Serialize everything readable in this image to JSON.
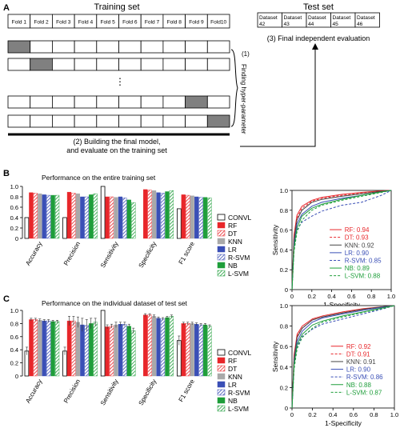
{
  "panel_a": {
    "letter": "A",
    "training_title": "Training set",
    "folds": [
      "Fold 1",
      "Fold 2",
      "Fold 3",
      "Fold 4",
      "Fold 5",
      "Fold 6",
      "Fold 7",
      "Fold 8",
      "Fold 9",
      "Fold10"
    ],
    "cv_highlight_folds": [
      1,
      2,
      9,
      10
    ],
    "dots": "⋮",
    "step1_number": "(1)",
    "step1_text": "Finding hyper-parameter",
    "step2_line1": "(2) Building the final model,",
    "step2_line2": "and evaluate on the training set",
    "test_title": "Test set",
    "test_datasets": [
      [
        "Dataset",
        "42"
      ],
      [
        "Dataset",
        "43"
      ],
      [
        "Dataset",
        "44"
      ],
      [
        "Dataset",
        "45"
      ],
      [
        "Dataset",
        "46"
      ]
    ],
    "step3_text": "(3) Final independent evaluation"
  },
  "panel_b": {
    "letter": "B",
    "title": "Performance on the entire training set"
  },
  "panel_c": {
    "letter": "C",
    "title": "Performance on the individual dataset of test set"
  },
  "models": [
    "CONVL",
    "RF",
    "DT",
    "KNN",
    "LR",
    "R-SVM",
    "NB",
    "L-SVM"
  ],
  "colors": {
    "CONVL": "#ffffff",
    "RF": "#e8262a",
    "DT": "#e8262a",
    "KNN": "#a9a9a9",
    "LR": "#3a4fb6",
    "R-SVM": "#3a4fb6",
    "NB": "#1e9e3a",
    "L-SVM": "#1e9e3a",
    "grey_fold": "#808080"
  },
  "roc_lines": {
    "RF": {
      "color": "#e8262a",
      "dash": "solid"
    },
    "DT": {
      "color": "#e8262a",
      "dash": "dashed"
    },
    "KNN": {
      "color": "#444444",
      "dash": "solid"
    },
    "LR": {
      "color": "#3a4fb6",
      "dash": "solid"
    },
    "R-SVM": {
      "color": "#3a4fb6",
      "dash": "dashed"
    },
    "NB": {
      "color": "#1e9e3a",
      "dash": "solid"
    },
    "L-SVM": {
      "color": "#1e9e3a",
      "dash": "dashed"
    }
  },
  "chart_data": [
    {
      "type": "bar",
      "title": "Performance on the entire training set",
      "categories": [
        "Accuracy",
        "Precision",
        "Sensitivity",
        "Specificity",
        "F1 score"
      ],
      "ylim": [
        0,
        1.0
      ],
      "yticks": [
        "0",
        "0.2",
        "0.4",
        "0.6",
        "0.8",
        "1.0"
      ],
      "series": [
        {
          "name": "CONVL",
          "values": [
            0.4,
            0.4,
            1.0,
            0.0,
            0.57
          ]
        },
        {
          "name": "RF",
          "values": [
            0.88,
            0.89,
            0.8,
            0.94,
            0.84
          ]
        },
        {
          "name": "DT",
          "values": [
            0.87,
            0.87,
            0.8,
            0.93,
            0.83
          ]
        },
        {
          "name": "KNN",
          "values": [
            0.86,
            0.86,
            0.79,
            0.92,
            0.82
          ]
        },
        {
          "name": "LR",
          "values": [
            0.84,
            0.8,
            0.8,
            0.88,
            0.8
          ]
        },
        {
          "name": "R-SVM",
          "values": [
            0.83,
            0.8,
            0.78,
            0.87,
            0.79
          ]
        },
        {
          "name": "NB",
          "values": [
            0.83,
            0.84,
            0.74,
            0.9,
            0.79
          ]
        },
        {
          "name": "L-SVM",
          "values": [
            0.83,
            0.86,
            0.69,
            0.92,
            0.78
          ]
        }
      ]
    },
    {
      "type": "line",
      "xlabel": "1-Specificity",
      "ylabel": "Sensitivity",
      "xlim": [
        0,
        1
      ],
      "ylim": [
        0,
        1
      ],
      "xticks": [
        "0",
        "0.2",
        "0.4",
        "0.6",
        "0.8",
        "1.0"
      ],
      "yticks": [
        "0",
        "0.2",
        "0.4",
        "0.6",
        "0.8",
        "1.0"
      ],
      "series": [
        {
          "name": "RF",
          "auc": "0.94",
          "x": [
            0,
            0.02,
            0.05,
            0.1,
            0.2,
            0.3,
            0.5,
            0.7,
            0.9,
            1
          ],
          "y": [
            0,
            0.55,
            0.75,
            0.84,
            0.9,
            0.93,
            0.96,
            0.98,
            0.995,
            1
          ]
        },
        {
          "name": "DT",
          "auc": "0.93",
          "x": [
            0,
            0.02,
            0.05,
            0.1,
            0.2,
            0.3,
            0.5,
            0.7,
            0.9,
            1
          ],
          "y": [
            0,
            0.52,
            0.72,
            0.82,
            0.89,
            0.92,
            0.95,
            0.97,
            0.99,
            1
          ]
        },
        {
          "name": "KNN",
          "auc": "0.92",
          "x": [
            0,
            0.02,
            0.05,
            0.1,
            0.2,
            0.3,
            0.5,
            0.7,
            0.9,
            1
          ],
          "y": [
            0,
            0.5,
            0.7,
            0.8,
            0.88,
            0.91,
            0.94,
            0.965,
            0.99,
            1
          ]
        },
        {
          "name": "LR",
          "auc": "0.90",
          "x": [
            0,
            0.02,
            0.05,
            0.1,
            0.2,
            0.3,
            0.5,
            0.7,
            0.9,
            1
          ],
          "y": [
            0,
            0.45,
            0.66,
            0.76,
            0.84,
            0.88,
            0.92,
            0.95,
            0.985,
            1
          ]
        },
        {
          "name": "R-SVM",
          "auc": "0.85",
          "x": [
            0,
            0.02,
            0.05,
            0.1,
            0.2,
            0.3,
            0.5,
            0.7,
            0.9,
            1
          ],
          "y": [
            0,
            0.4,
            0.6,
            0.68,
            0.74,
            0.79,
            0.85,
            0.88,
            0.95,
            1
          ]
        },
        {
          "name": "NB",
          "auc": "0.89",
          "x": [
            0,
            0.02,
            0.05,
            0.1,
            0.2,
            0.3,
            0.5,
            0.7,
            0.9,
            1
          ],
          "y": [
            0,
            0.42,
            0.62,
            0.74,
            0.82,
            0.86,
            0.91,
            0.95,
            0.985,
            1
          ]
        },
        {
          "name": "L-SVM",
          "auc": "0.88",
          "x": [
            0,
            0.02,
            0.05,
            0.1,
            0.2,
            0.3,
            0.5,
            0.7,
            0.9,
            1
          ],
          "y": [
            0,
            0.38,
            0.58,
            0.7,
            0.8,
            0.85,
            0.9,
            0.94,
            0.98,
            1
          ]
        }
      ]
    },
    {
      "type": "bar",
      "title": "Performance on the individual dataset of test set",
      "categories": [
        "Accuracy",
        "Precision",
        "Sensitivity",
        "Specificity",
        "F1 score"
      ],
      "ylim": [
        0,
        1.0
      ],
      "yticks": [
        "0",
        "0.2",
        "0.4",
        "0.6",
        "0.8",
        "1.0"
      ],
      "error_bars": true,
      "series": [
        {
          "name": "CONVL",
          "values": [
            0.38,
            0.38,
            1.0,
            0.0,
            0.54
          ],
          "errors": [
            0.06,
            0.06,
            0.0,
            0.0,
            0.07
          ]
        },
        {
          "name": "RF",
          "values": [
            0.86,
            0.84,
            0.75,
            0.93,
            0.8
          ],
          "errors": [
            0.02,
            0.07,
            0.03,
            0.02,
            0.02
          ]
        },
        {
          "name": "DT",
          "values": [
            0.86,
            0.84,
            0.76,
            0.93,
            0.8
          ],
          "errors": [
            0.02,
            0.07,
            0.03,
            0.02,
            0.02
          ]
        },
        {
          "name": "KNN",
          "values": [
            0.85,
            0.82,
            0.78,
            0.91,
            0.8
          ],
          "errors": [
            0.02,
            0.08,
            0.04,
            0.02,
            0.02
          ]
        },
        {
          "name": "LR",
          "values": [
            0.84,
            0.78,
            0.79,
            0.88,
            0.79
          ],
          "errors": [
            0.02,
            0.1,
            0.03,
            0.02,
            0.02
          ]
        },
        {
          "name": "R-SVM",
          "values": [
            0.84,
            0.77,
            0.79,
            0.87,
            0.78
          ],
          "errors": [
            0.02,
            0.09,
            0.03,
            0.02,
            0.02
          ]
        },
        {
          "name": "NB",
          "values": [
            0.83,
            0.8,
            0.76,
            0.89,
            0.78
          ],
          "errors": [
            0.02,
            0.08,
            0.03,
            0.02,
            0.02
          ]
        },
        {
          "name": "L-SVM",
          "values": [
            0.83,
            0.82,
            0.69,
            0.91,
            0.76
          ],
          "errors": [
            0.02,
            0.06,
            0.04,
            0.02,
            0.02
          ]
        }
      ]
    },
    {
      "type": "line",
      "xlabel": "1-Specificity",
      "ylabel": "Sensitivity",
      "xlim": [
        0,
        1
      ],
      "ylim": [
        0,
        1
      ],
      "xticks": [
        "0",
        "0.2",
        "0.4",
        "0.6",
        "0.8",
        "1.0"
      ],
      "yticks": [
        "0",
        "0.2",
        "0.4",
        "0.6",
        "0.8",
        "1.0"
      ],
      "series": [
        {
          "name": "RF",
          "auc": "0.92",
          "x": [
            0,
            0.02,
            0.05,
            0.1,
            0.2,
            0.3,
            0.5,
            0.7,
            0.9,
            1
          ],
          "y": [
            0,
            0.52,
            0.72,
            0.8,
            0.87,
            0.9,
            0.94,
            0.97,
            0.99,
            1
          ]
        },
        {
          "name": "DT",
          "auc": "0.91",
          "x": [
            0,
            0.02,
            0.05,
            0.1,
            0.2,
            0.3,
            0.5,
            0.7,
            0.9,
            1
          ],
          "y": [
            0,
            0.5,
            0.7,
            0.78,
            0.86,
            0.89,
            0.93,
            0.965,
            0.99,
            1
          ]
        },
        {
          "name": "KNN",
          "auc": "0.91",
          "x": [
            0,
            0.02,
            0.05,
            0.1,
            0.2,
            0.3,
            0.5,
            0.7,
            0.9,
            1
          ],
          "y": [
            0,
            0.48,
            0.69,
            0.78,
            0.86,
            0.89,
            0.93,
            0.965,
            0.99,
            1
          ]
        },
        {
          "name": "LR",
          "auc": "0.90",
          "x": [
            0,
            0.02,
            0.05,
            0.1,
            0.2,
            0.3,
            0.5,
            0.7,
            0.9,
            1
          ],
          "y": [
            0,
            0.44,
            0.65,
            0.75,
            0.84,
            0.88,
            0.92,
            0.955,
            0.985,
            1
          ]
        },
        {
          "name": "R-SVM",
          "auc": "0.86",
          "x": [
            0,
            0.02,
            0.05,
            0.1,
            0.2,
            0.3,
            0.5,
            0.7,
            0.9,
            1
          ],
          "y": [
            0,
            0.4,
            0.6,
            0.7,
            0.77,
            0.82,
            0.87,
            0.92,
            0.97,
            1
          ]
        },
        {
          "name": "NB",
          "auc": "0.88",
          "x": [
            0,
            0.02,
            0.05,
            0.1,
            0.2,
            0.3,
            0.5,
            0.7,
            0.9,
            1
          ],
          "y": [
            0,
            0.42,
            0.62,
            0.72,
            0.81,
            0.85,
            0.9,
            0.94,
            0.98,
            1
          ]
        },
        {
          "name": "L-SVM",
          "auc": "0.87",
          "x": [
            0,
            0.02,
            0.05,
            0.1,
            0.2,
            0.3,
            0.5,
            0.7,
            0.9,
            1
          ],
          "y": [
            0,
            0.38,
            0.58,
            0.69,
            0.78,
            0.84,
            0.89,
            0.935,
            0.975,
            1
          ]
        }
      ]
    }
  ]
}
